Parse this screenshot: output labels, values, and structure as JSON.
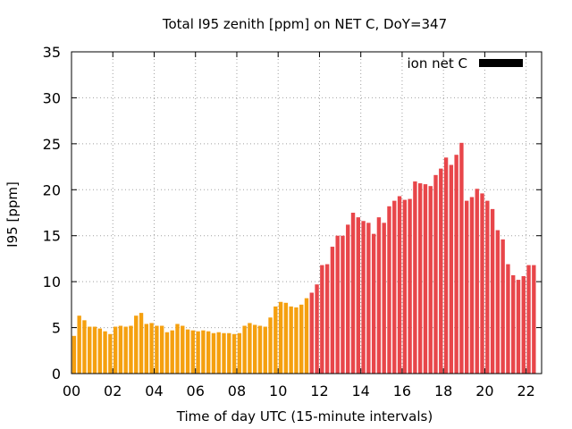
{
  "chart_data": {
    "type": "bar",
    "title": "Total I95 zenith [ppm] on NET C, DoY=347",
    "xlabel": "Time of day UTC (15-minute intervals)",
    "ylabel": "I95 [ppm]",
    "xlim": [
      0,
      22.75
    ],
    "ylim": [
      0,
      35
    ],
    "x_ticks": [
      0,
      2,
      4,
      6,
      8,
      10,
      12,
      14,
      16,
      18,
      20,
      22
    ],
    "x_tick_labels": [
      "00",
      "02",
      "04",
      "06",
      "08",
      "10",
      "12",
      "14",
      "16",
      "18",
      "20",
      "22"
    ],
    "y_ticks": [
      0,
      5,
      10,
      15,
      20,
      25,
      30,
      35
    ],
    "y_tick_labels": [
      "0",
      "5",
      "10",
      "15",
      "20",
      "25",
      "30",
      "35"
    ],
    "grid": true,
    "legend": {
      "label": "ion net C",
      "placement": "top-right",
      "color": "#000000"
    },
    "interval_hours": 0.25,
    "colors": {
      "low": "#f5a00f",
      "high": "#e8464a"
    },
    "color_switch_hour": 11.5,
    "values": [
      4.1,
      6.3,
      5.8,
      5.1,
      5.1,
      4.9,
      4.6,
      4.3,
      5.1,
      5.2,
      5.1,
      5.2,
      6.3,
      6.6,
      5.4,
      5.5,
      5.2,
      5.2,
      4.5,
      4.7,
      5.4,
      5.2,
      4.8,
      4.7,
      4.6,
      4.7,
      4.6,
      4.4,
      4.5,
      4.4,
      4.4,
      4.3,
      4.4,
      5.2,
      5.5,
      5.3,
      5.2,
      5.1,
      6.1,
      7.3,
      7.8,
      7.7,
      7.3,
      7.2,
      7.5,
      8.2,
      8.8,
      9.7,
      11.8,
      11.9,
      13.8,
      15.0,
      15.0,
      16.2,
      17.5,
      17.0,
      16.6,
      16.4,
      15.2,
      17.0,
      16.4,
      18.2,
      18.8,
      19.3,
      18.9,
      19.0,
      20.9,
      20.7,
      20.6,
      20.4,
      21.6,
      22.3,
      23.5,
      22.7,
      23.8,
      25.1,
      18.8,
      19.2,
      20.1,
      19.6,
      18.8,
      17.9,
      15.6,
      14.6,
      11.9,
      10.7,
      10.2,
      10.6,
      11.8,
      11.8
    ]
  }
}
